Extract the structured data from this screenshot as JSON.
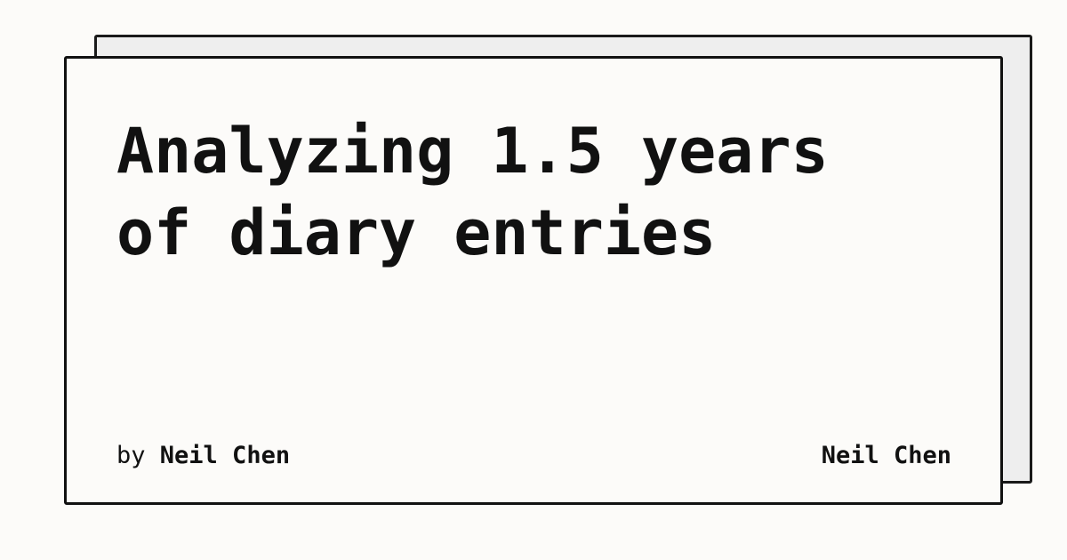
{
  "card": {
    "title_line1": "Analyzing 1.5 years",
    "title_line2": "of diary entries",
    "byline_prefix": "by",
    "author": "Neil Chen",
    "brand": "Neil Chen"
  },
  "colors": {
    "background": "#fcfbf9",
    "back_card": "#eeeeee",
    "border": "#111111",
    "text": "#111111"
  }
}
